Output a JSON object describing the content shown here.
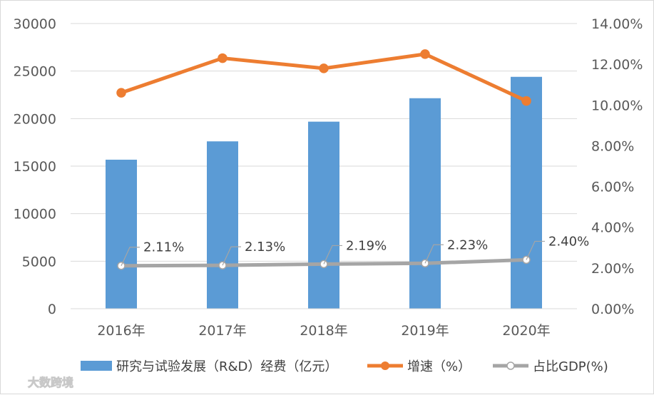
{
  "chart_data": {
    "type": "bar",
    "categories": [
      "2016年",
      "2017年",
      "2018年",
      "2019年",
      "2020年"
    ],
    "series": [
      {
        "name": "研究与试验发展（R&D）经费（亿元）",
        "type": "bar",
        "axis": "left",
        "color": "#5b9bd5",
        "values": [
          15677,
          17606,
          19678,
          22144,
          24393
        ]
      },
      {
        "name": "增速（%）",
        "type": "line",
        "axis": "right",
        "color": "#ed7d31",
        "values": [
          0.106,
          0.123,
          0.118,
          0.125,
          0.102
        ]
      },
      {
        "name": "占比GDP(%)",
        "type": "line",
        "axis": "right",
        "color": "#a5a5a5",
        "values": [
          0.0211,
          0.0213,
          0.0219,
          0.0223,
          0.024
        ],
        "labels": [
          "2.11%",
          "2.13%",
          "2.19%",
          "2.23%",
          "2.40%"
        ]
      }
    ],
    "y_left": {
      "ylim": [
        0,
        30000
      ],
      "ticks": [
        "0",
        "5000",
        "10000",
        "15000",
        "20000",
        "25000",
        "30000"
      ]
    },
    "y_right": {
      "ylim": [
        0,
        0.14
      ],
      "ticks": [
        "0.00%",
        "2.00%",
        "4.00%",
        "6.00%",
        "8.00%",
        "10.00%",
        "12.00%",
        "14.00%"
      ]
    },
    "grid": true,
    "legend": "bottom"
  },
  "watermark": "大数跨境"
}
